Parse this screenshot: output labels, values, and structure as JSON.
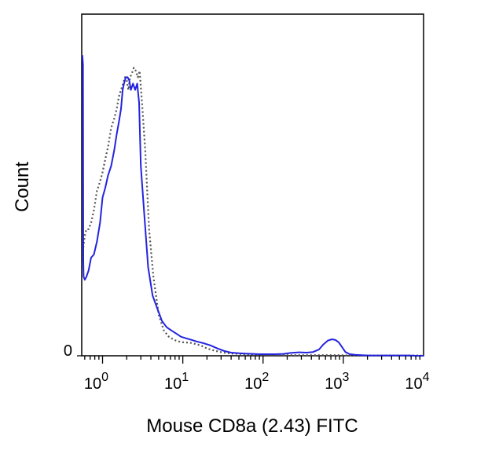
{
  "chart_data": {
    "type": "line",
    "title": "",
    "xlabel": "Mouse CD8a (2.43) FITC",
    "ylabel": "Count",
    "x_scale": "log",
    "xlim": [
      0.55,
      10000
    ],
    "ylim": [
      0,
      100
    ],
    "grid": false,
    "legend": "none",
    "x_ticks": [
      {
        "value": 1,
        "base": "10",
        "exp": "0"
      },
      {
        "value": 10,
        "base": "10",
        "exp": "1"
      },
      {
        "value": 100,
        "base": "10",
        "exp": "2"
      },
      {
        "value": 1000,
        "base": "10",
        "exp": "3"
      },
      {
        "value": 10000,
        "base": "10",
        "exp": "4"
      }
    ],
    "y_ticks": [
      {
        "value": 0,
        "label": "0"
      }
    ],
    "series": [
      {
        "style": "solid",
        "color": "#2323e0",
        "x": [
          0.56,
          0.57,
          0.575,
          0.58,
          0.6,
          0.63,
          0.67,
          0.72,
          0.78,
          0.85,
          0.93,
          1.0,
          1.08,
          1.17,
          1.28,
          1.4,
          1.5,
          1.6,
          1.7,
          1.78,
          1.85,
          1.95,
          2.05,
          2.15,
          2.25,
          2.4,
          2.55,
          2.7,
          2.85,
          3.0,
          3.3,
          3.7,
          4.2,
          4.8,
          5.5,
          6.3,
          7.2,
          8.3,
          9.5,
          11,
          13,
          15,
          18,
          22,
          27,
          33,
          40,
          50,
          60,
          75,
          90,
          110,
          140,
          180,
          220,
          280,
          350,
          420,
          500,
          560,
          640,
          720,
          800,
          880,
          960,
          1060,
          1200,
          1400,
          1700,
          2100,
          2600,
          3200,
          4000,
          5000,
          6500,
          8000,
          10000
        ],
        "y": [
          95,
          92,
          30,
          25,
          24,
          25,
          27,
          31,
          32,
          36,
          42,
          50,
          53,
          57,
          60,
          65,
          70,
          74,
          78,
          84,
          86,
          88,
          88,
          87,
          84,
          86,
          84,
          86,
          80,
          60,
          45,
          28,
          19,
          15,
          11,
          9,
          8,
          7,
          6,
          5.5,
          5,
          4.5,
          4,
          3.3,
          2.3,
          1.5,
          1,
          0.8,
          0.7,
          0.6,
          0.5,
          0.5,
          0.5,
          0.6,
          0.9,
          1.1,
          1,
          1.2,
          2,
          3.5,
          4.8,
          5.2,
          5,
          4.2,
          2.8,
          1.2,
          0.5,
          0.3,
          0.2,
          0.1,
          0.1,
          0.1,
          0.1,
          0.1,
          0.1,
          0,
          0
        ]
      },
      {
        "style": "dotted",
        "color": "#555555",
        "x": [
          0.57,
          0.58,
          0.6,
          0.63,
          0.67,
          0.72,
          0.78,
          0.85,
          0.93,
          1.0,
          1.08,
          1.17,
          1.28,
          1.4,
          1.5,
          1.6,
          1.7,
          1.8,
          1.9,
          2.0,
          2.1,
          2.2,
          2.3,
          2.45,
          2.6,
          2.75,
          2.9,
          3.1,
          3.4,
          3.8,
          4.3,
          5.0,
          5.8,
          6.7,
          7.8,
          9.0,
          10.5,
          12,
          14,
          17,
          20,
          25,
          32,
          40,
          50,
          60,
          75,
          90,
          110,
          150,
          200,
          300,
          400,
          550,
          700,
          900,
          1200,
          1800,
          3000,
          5000,
          8000,
          10000
        ],
        "y": [
          33,
          35,
          38,
          40,
          40,
          42,
          46,
          52,
          55,
          58,
          62,
          66,
          72,
          75,
          78,
          82,
          84,
          86,
          88,
          87,
          84,
          88,
          89,
          91,
          90,
          88,
          90,
          80,
          65,
          40,
          25,
          13,
          8,
          6,
          5,
          4.5,
          4.2,
          4.2,
          3.8,
          3.2,
          2.3,
          1.6,
          1,
          0.7,
          0.6,
          0.5,
          0.4,
          0.4,
          0.3,
          0.3,
          0.2,
          0.2,
          0.2,
          0.2,
          0.2,
          0.2,
          0.1,
          0.1,
          0.1,
          0.1,
          0.1,
          0
        ]
      }
    ]
  }
}
